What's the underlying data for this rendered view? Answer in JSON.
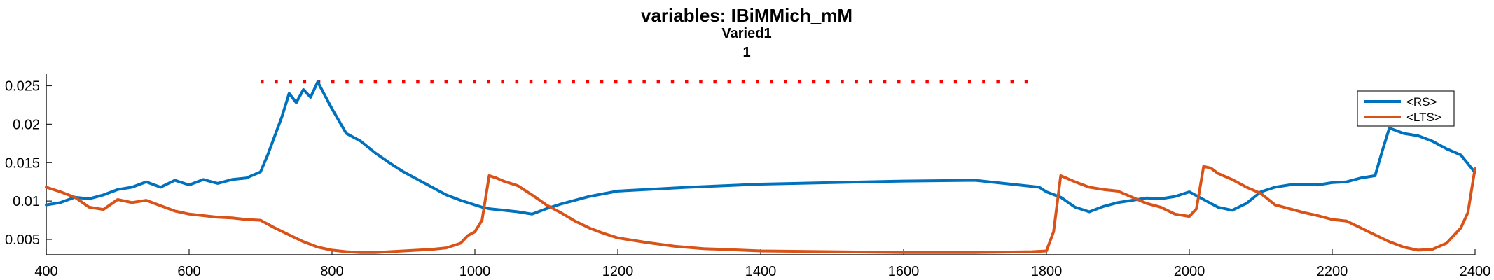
{
  "chart_data": {
    "type": "line",
    "title": "variables: IBiMMich_mM",
    "subtitle_lines": [
      "Varied1",
      "1"
    ],
    "xlabel": "",
    "ylabel": "",
    "xlim": [
      400,
      2400
    ],
    "ylim": [
      0.003,
      0.0265
    ],
    "x_ticks": [
      400,
      600,
      800,
      1000,
      1200,
      1400,
      1600,
      1800,
      2000,
      2200,
      2400
    ],
    "y_ticks": [
      0.005,
      0.01,
      0.015,
      0.02,
      0.025
    ],
    "y_tick_labels": [
      "0.005",
      "0.01",
      "0.015",
      "0.02",
      "0.025"
    ],
    "grid": false,
    "legend_position": "top-right",
    "stimulus_marker": {
      "x_start": 700,
      "x_end": 1790,
      "y": 0.0255,
      "color": "#ff0000",
      "style": "dotted"
    },
    "series": [
      {
        "name": "<RS>",
        "color": "#0072bd",
        "x": [
          400,
          420,
          440,
          460,
          480,
          500,
          520,
          540,
          560,
          580,
          600,
          620,
          640,
          660,
          680,
          700,
          710,
          720,
          730,
          740,
          750,
          760,
          770,
          780,
          800,
          820,
          840,
          860,
          880,
          900,
          920,
          940,
          960,
          980,
          1000,
          1010,
          1020,
          1040,
          1060,
          1080,
          1100,
          1120,
          1140,
          1160,
          1200,
          1300,
          1400,
          1500,
          1600,
          1700,
          1790,
          1800,
          1820,
          1840,
          1860,
          1880,
          1900,
          1920,
          1940,
          1960,
          1980,
          2000,
          2020,
          2040,
          2060,
          2080,
          2100,
          2120,
          2140,
          2160,
          2180,
          2200,
          2220,
          2240,
          2260,
          2270,
          2280,
          2300,
          2320,
          2340,
          2360,
          2380,
          2400
        ],
        "y": [
          0.0095,
          0.0098,
          0.0105,
          0.0103,
          0.0108,
          0.0115,
          0.0118,
          0.0125,
          0.0118,
          0.0127,
          0.0121,
          0.0128,
          0.0123,
          0.0128,
          0.013,
          0.0138,
          0.016,
          0.0185,
          0.021,
          0.024,
          0.0228,
          0.0245,
          0.0235,
          0.0255,
          0.022,
          0.0188,
          0.0178,
          0.0163,
          0.015,
          0.0138,
          0.0128,
          0.0118,
          0.0108,
          0.0101,
          0.0095,
          0.0092,
          0.009,
          0.0088,
          0.0086,
          0.0083,
          0.009,
          0.0096,
          0.0101,
          0.0106,
          0.0113,
          0.0118,
          0.0122,
          0.0124,
          0.0126,
          0.0127,
          0.0118,
          0.0112,
          0.0105,
          0.0092,
          0.0086,
          0.0093,
          0.0098,
          0.0101,
          0.0104,
          0.0103,
          0.0106,
          0.0112,
          0.0102,
          0.0092,
          0.0088,
          0.0097,
          0.0112,
          0.0118,
          0.0121,
          0.0122,
          0.0121,
          0.0124,
          0.0125,
          0.013,
          0.0133,
          0.0165,
          0.0195,
          0.0188,
          0.0185,
          0.0178,
          0.0168,
          0.016,
          0.0137
        ]
      },
      {
        "name": "<LTS>",
        "color": "#d95319",
        "x": [
          400,
          420,
          440,
          460,
          480,
          500,
          520,
          540,
          560,
          580,
          600,
          620,
          640,
          660,
          680,
          700,
          720,
          740,
          760,
          780,
          800,
          820,
          840,
          860,
          880,
          900,
          920,
          940,
          960,
          980,
          990,
          1000,
          1010,
          1020,
          1030,
          1040,
          1060,
          1080,
          1100,
          1120,
          1140,
          1160,
          1180,
          1200,
          1240,
          1280,
          1320,
          1400,
          1500,
          1600,
          1700,
          1780,
          1800,
          1810,
          1820,
          1840,
          1860,
          1880,
          1900,
          1920,
          1940,
          1960,
          1980,
          2000,
          2010,
          2020,
          2030,
          2040,
          2060,
          2080,
          2100,
          2120,
          2140,
          2160,
          2180,
          2200,
          2220,
          2240,
          2260,
          2280,
          2300,
          2320,
          2340,
          2360,
          2380,
          2390,
          2400
        ],
        "y": [
          0.0118,
          0.0112,
          0.0105,
          0.0092,
          0.0089,
          0.0102,
          0.0098,
          0.0101,
          0.0094,
          0.0087,
          0.0083,
          0.0081,
          0.0079,
          0.0078,
          0.0076,
          0.0075,
          0.0065,
          0.0056,
          0.0047,
          0.004,
          0.0036,
          0.0034,
          0.0033,
          0.0033,
          0.0034,
          0.0035,
          0.0036,
          0.0037,
          0.0039,
          0.0045,
          0.0055,
          0.006,
          0.0075,
          0.0133,
          0.013,
          0.0126,
          0.012,
          0.0108,
          0.0095,
          0.0085,
          0.0074,
          0.0065,
          0.0058,
          0.0052,
          0.0046,
          0.0041,
          0.0038,
          0.0035,
          0.0034,
          0.0033,
          0.0033,
          0.0034,
          0.0035,
          0.006,
          0.0133,
          0.0125,
          0.0118,
          0.0115,
          0.0113,
          0.0105,
          0.0097,
          0.0092,
          0.0083,
          0.008,
          0.009,
          0.0145,
          0.0143,
          0.0136,
          0.0128,
          0.0118,
          0.011,
          0.0095,
          0.009,
          0.0085,
          0.0081,
          0.0076,
          0.0074,
          0.0065,
          0.0056,
          0.0047,
          0.004,
          0.0036,
          0.0037,
          0.0045,
          0.0065,
          0.0085,
          0.0143
        ]
      }
    ]
  }
}
